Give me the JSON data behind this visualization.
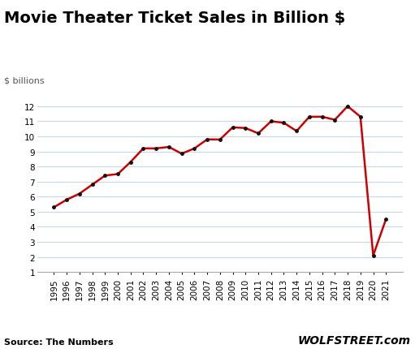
{
  "title": "Movie Theater Ticket Sales in Billion $",
  "ylabel": "$ billions",
  "source": "Source: The Numbers",
  "watermark": "WOLFSTREET.com",
  "years": [
    1995,
    1996,
    1997,
    1998,
    1999,
    2000,
    2001,
    2002,
    2003,
    2004,
    2005,
    2006,
    2007,
    2008,
    2009,
    2010,
    2011,
    2012,
    2013,
    2014,
    2015,
    2016,
    2017,
    2018,
    2019,
    2020,
    2021
  ],
  "values": [
    5.3,
    5.8,
    6.2,
    6.8,
    7.4,
    7.5,
    8.3,
    9.2,
    9.2,
    9.3,
    8.85,
    9.2,
    9.8,
    9.79,
    10.6,
    10.55,
    10.2,
    11.0,
    10.9,
    10.35,
    11.3,
    11.3,
    11.1,
    12.0,
    11.3,
    2.1,
    4.5
  ],
  "line_color": "#cc0000",
  "marker_color": "#111111",
  "bg_color": "#ffffff",
  "grid_color": "#c8d8e8",
  "title_fontsize": 14,
  "ylabel_fontsize": 8,
  "tick_fontsize": 7.5,
  "source_fontsize": 8,
  "watermark_fontsize": 10,
  "ylim": [
    1,
    12.6
  ],
  "yticks": [
    1,
    2,
    3,
    4,
    5,
    6,
    7,
    8,
    9,
    10,
    11,
    12
  ]
}
